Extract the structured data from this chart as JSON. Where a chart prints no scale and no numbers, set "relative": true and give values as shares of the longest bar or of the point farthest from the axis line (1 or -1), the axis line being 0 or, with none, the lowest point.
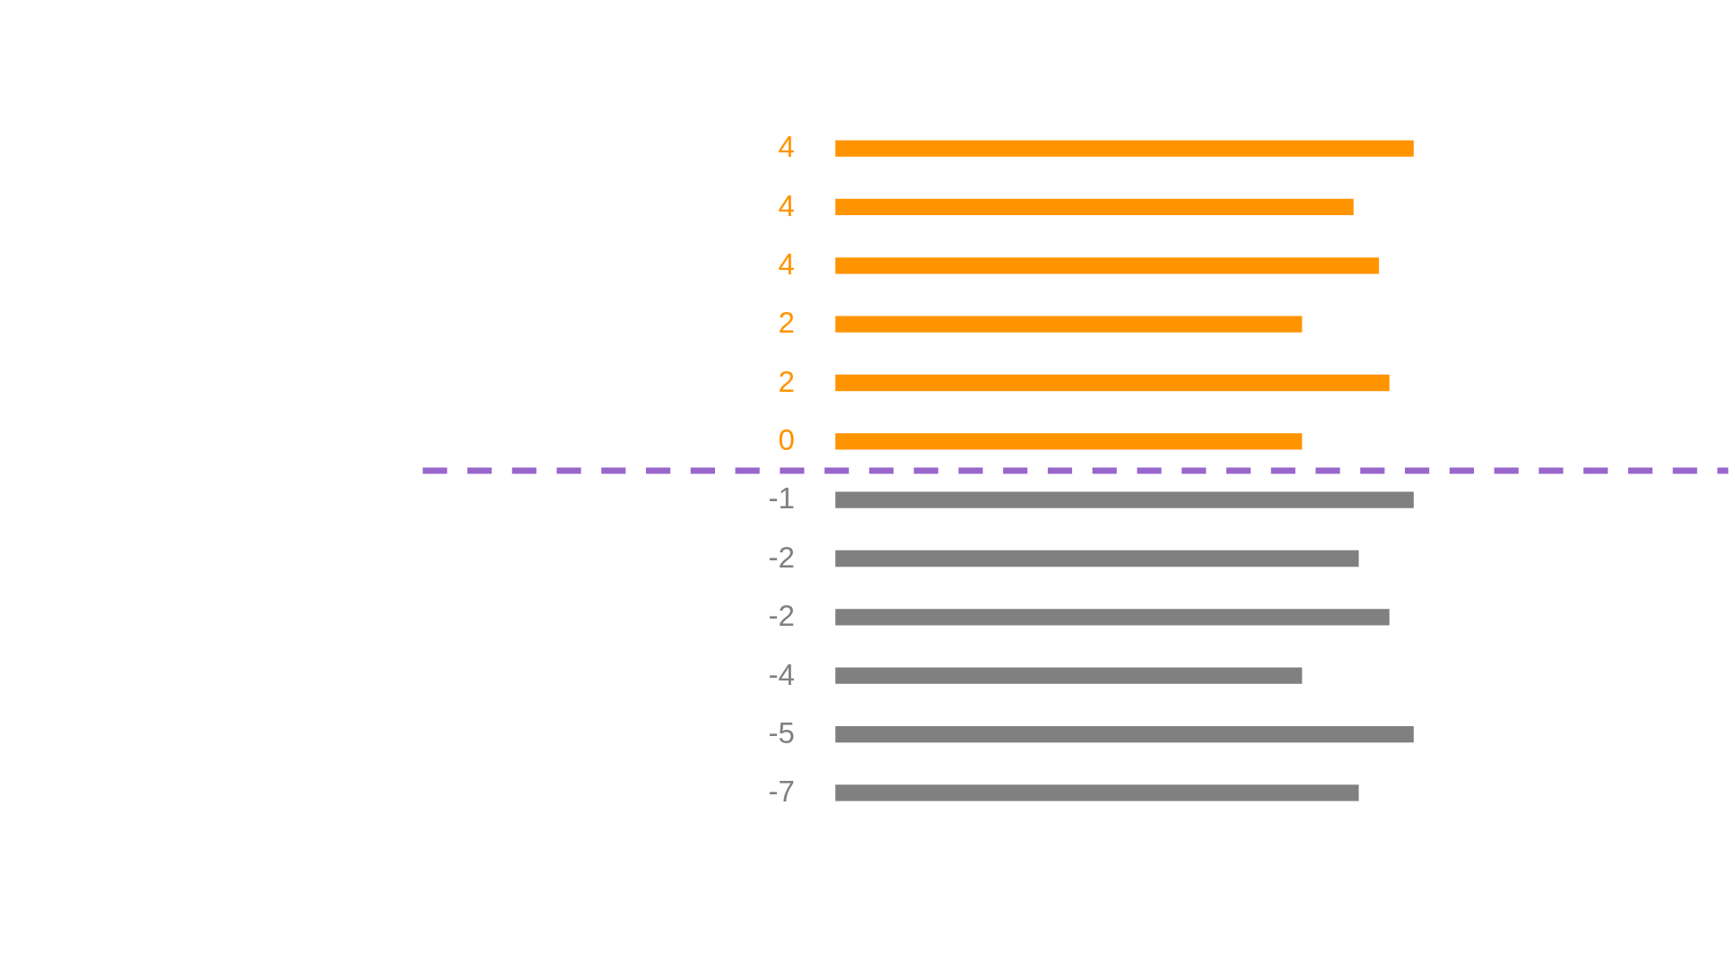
{
  "chart_data": {
    "type": "bar",
    "orientation": "horizontal",
    "relative": true,
    "categories": [
      "4",
      "4",
      "4",
      "2",
      "2",
      "0",
      "-1",
      "-2",
      "-2",
      "-4",
      "-5",
      "-7"
    ],
    "values": [
      1.0,
      0.896,
      0.94,
      0.807,
      0.958,
      0.807,
      1.0,
      0.905,
      0.958,
      0.807,
      1.0,
      0.905
    ],
    "colors": [
      "#ff9400",
      "#ff9400",
      "#ff9400",
      "#ff9400",
      "#ff9400",
      "#ff9400",
      "#808080",
      "#808080",
      "#808080",
      "#808080",
      "#808080",
      "#808080"
    ],
    "ref_lines": [
      {
        "axis": "y",
        "value": "-1",
        "color": "#9966cc",
        "line_style": "dashed"
      }
    ]
  }
}
